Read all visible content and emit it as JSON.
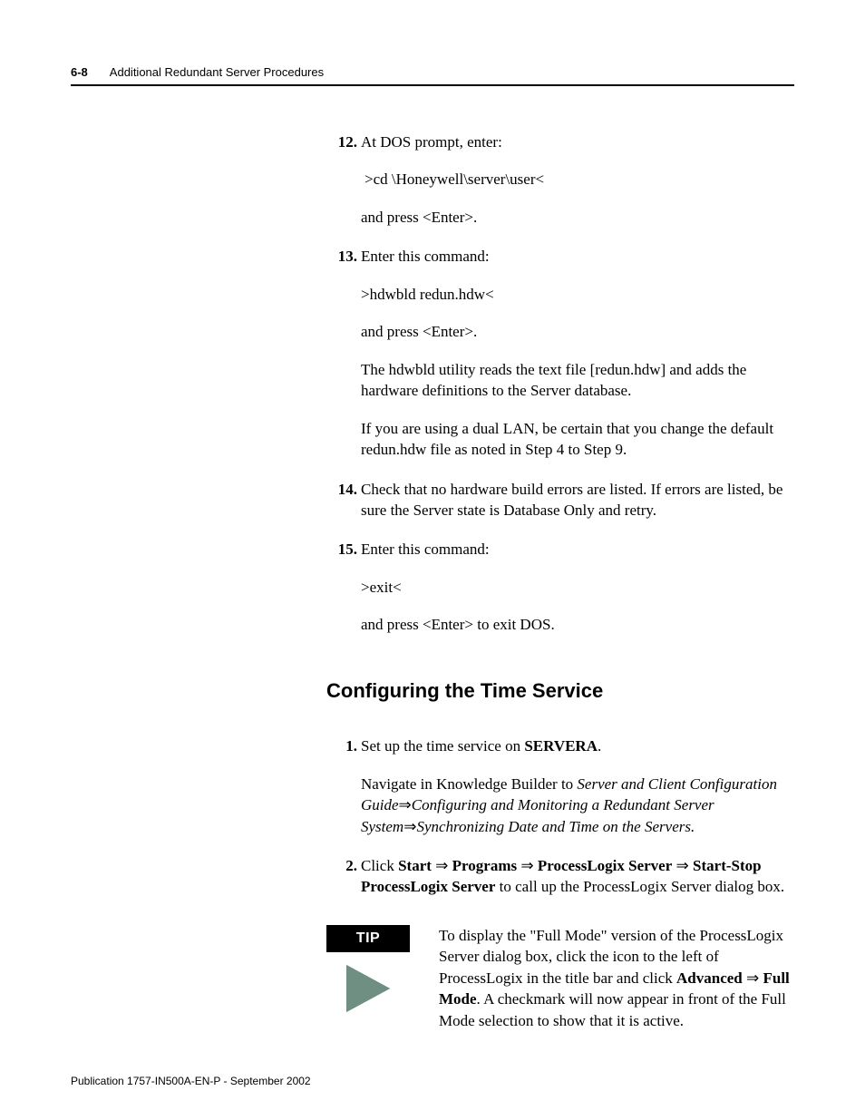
{
  "page": {
    "number": "6-8",
    "chapter_title": "Additional Redundant Server Procedures"
  },
  "steps_a": [
    {
      "n": "12.",
      "paras": [
        "At DOS prompt, enter:",
        " >cd \\Honeywell\\server\\user<",
        "and press <Enter>."
      ]
    },
    {
      "n": "13.",
      "paras": [
        "Enter this command:",
        ">hdwbld redun.hdw<",
        "and press <Enter>.",
        "The hdwbld utility reads the text file [redun.hdw] and adds the hardware definitions to the Server database.",
        "If you are using a dual LAN, be certain that you change the default redun.hdw file as noted in Step 4 to Step 9."
      ]
    },
    {
      "n": "14.",
      "paras": [
        "Check that no hardware build errors are listed. If errors are listed, be sure the Server state is Database Only and retry."
      ]
    },
    {
      "n": "15.",
      "paras": [
        "Enter this command:",
        ">exit<",
        "and press <Enter> to exit DOS."
      ]
    }
  ],
  "section_heading": "Configuring the Time Service",
  "steps_b": {
    "s1": {
      "n": "1.",
      "lead_pre": "Set up the time service on ",
      "lead_bold": "SERVERA",
      "lead_post": ".",
      "nav_pre": "Navigate in Knowledge Builder to ",
      "nav_i1": "Server and Client Configuration Guide",
      "nav_i2": "Configuring and Monitoring a Redundant Server System",
      "nav_i3": "Synchronizing Date and Time on the Servers."
    },
    "s2": {
      "n": "2.",
      "pre": "Click ",
      "b1": "Start",
      "b2": "Programs",
      "b3": "ProcessLogix Server",
      "b4": "Start-Stop ProcessLogix Server",
      "post": " to call up the ProcessLogix Server dialog box."
    }
  },
  "tip": {
    "label": "TIP",
    "pre": "To display the \"Full Mode\" version of the ProcessLogix Server dialog box, click the icon to the left of ProcessLogix in the title bar and click ",
    "b1": "Advanced",
    "b2": "Full Mode",
    "post": ". A checkmark will now appear in front of the Full Mode selection to show that it is active."
  },
  "arrow_glyph": "⇒",
  "colors": {
    "tip_triangle_fill": "#6f8f82",
    "tip_triangle_outline": "#2e4a40",
    "text": "#000000",
    "background": "#ffffff"
  },
  "footer": "Publication 1757-IN500A-EN-P - September 2002"
}
